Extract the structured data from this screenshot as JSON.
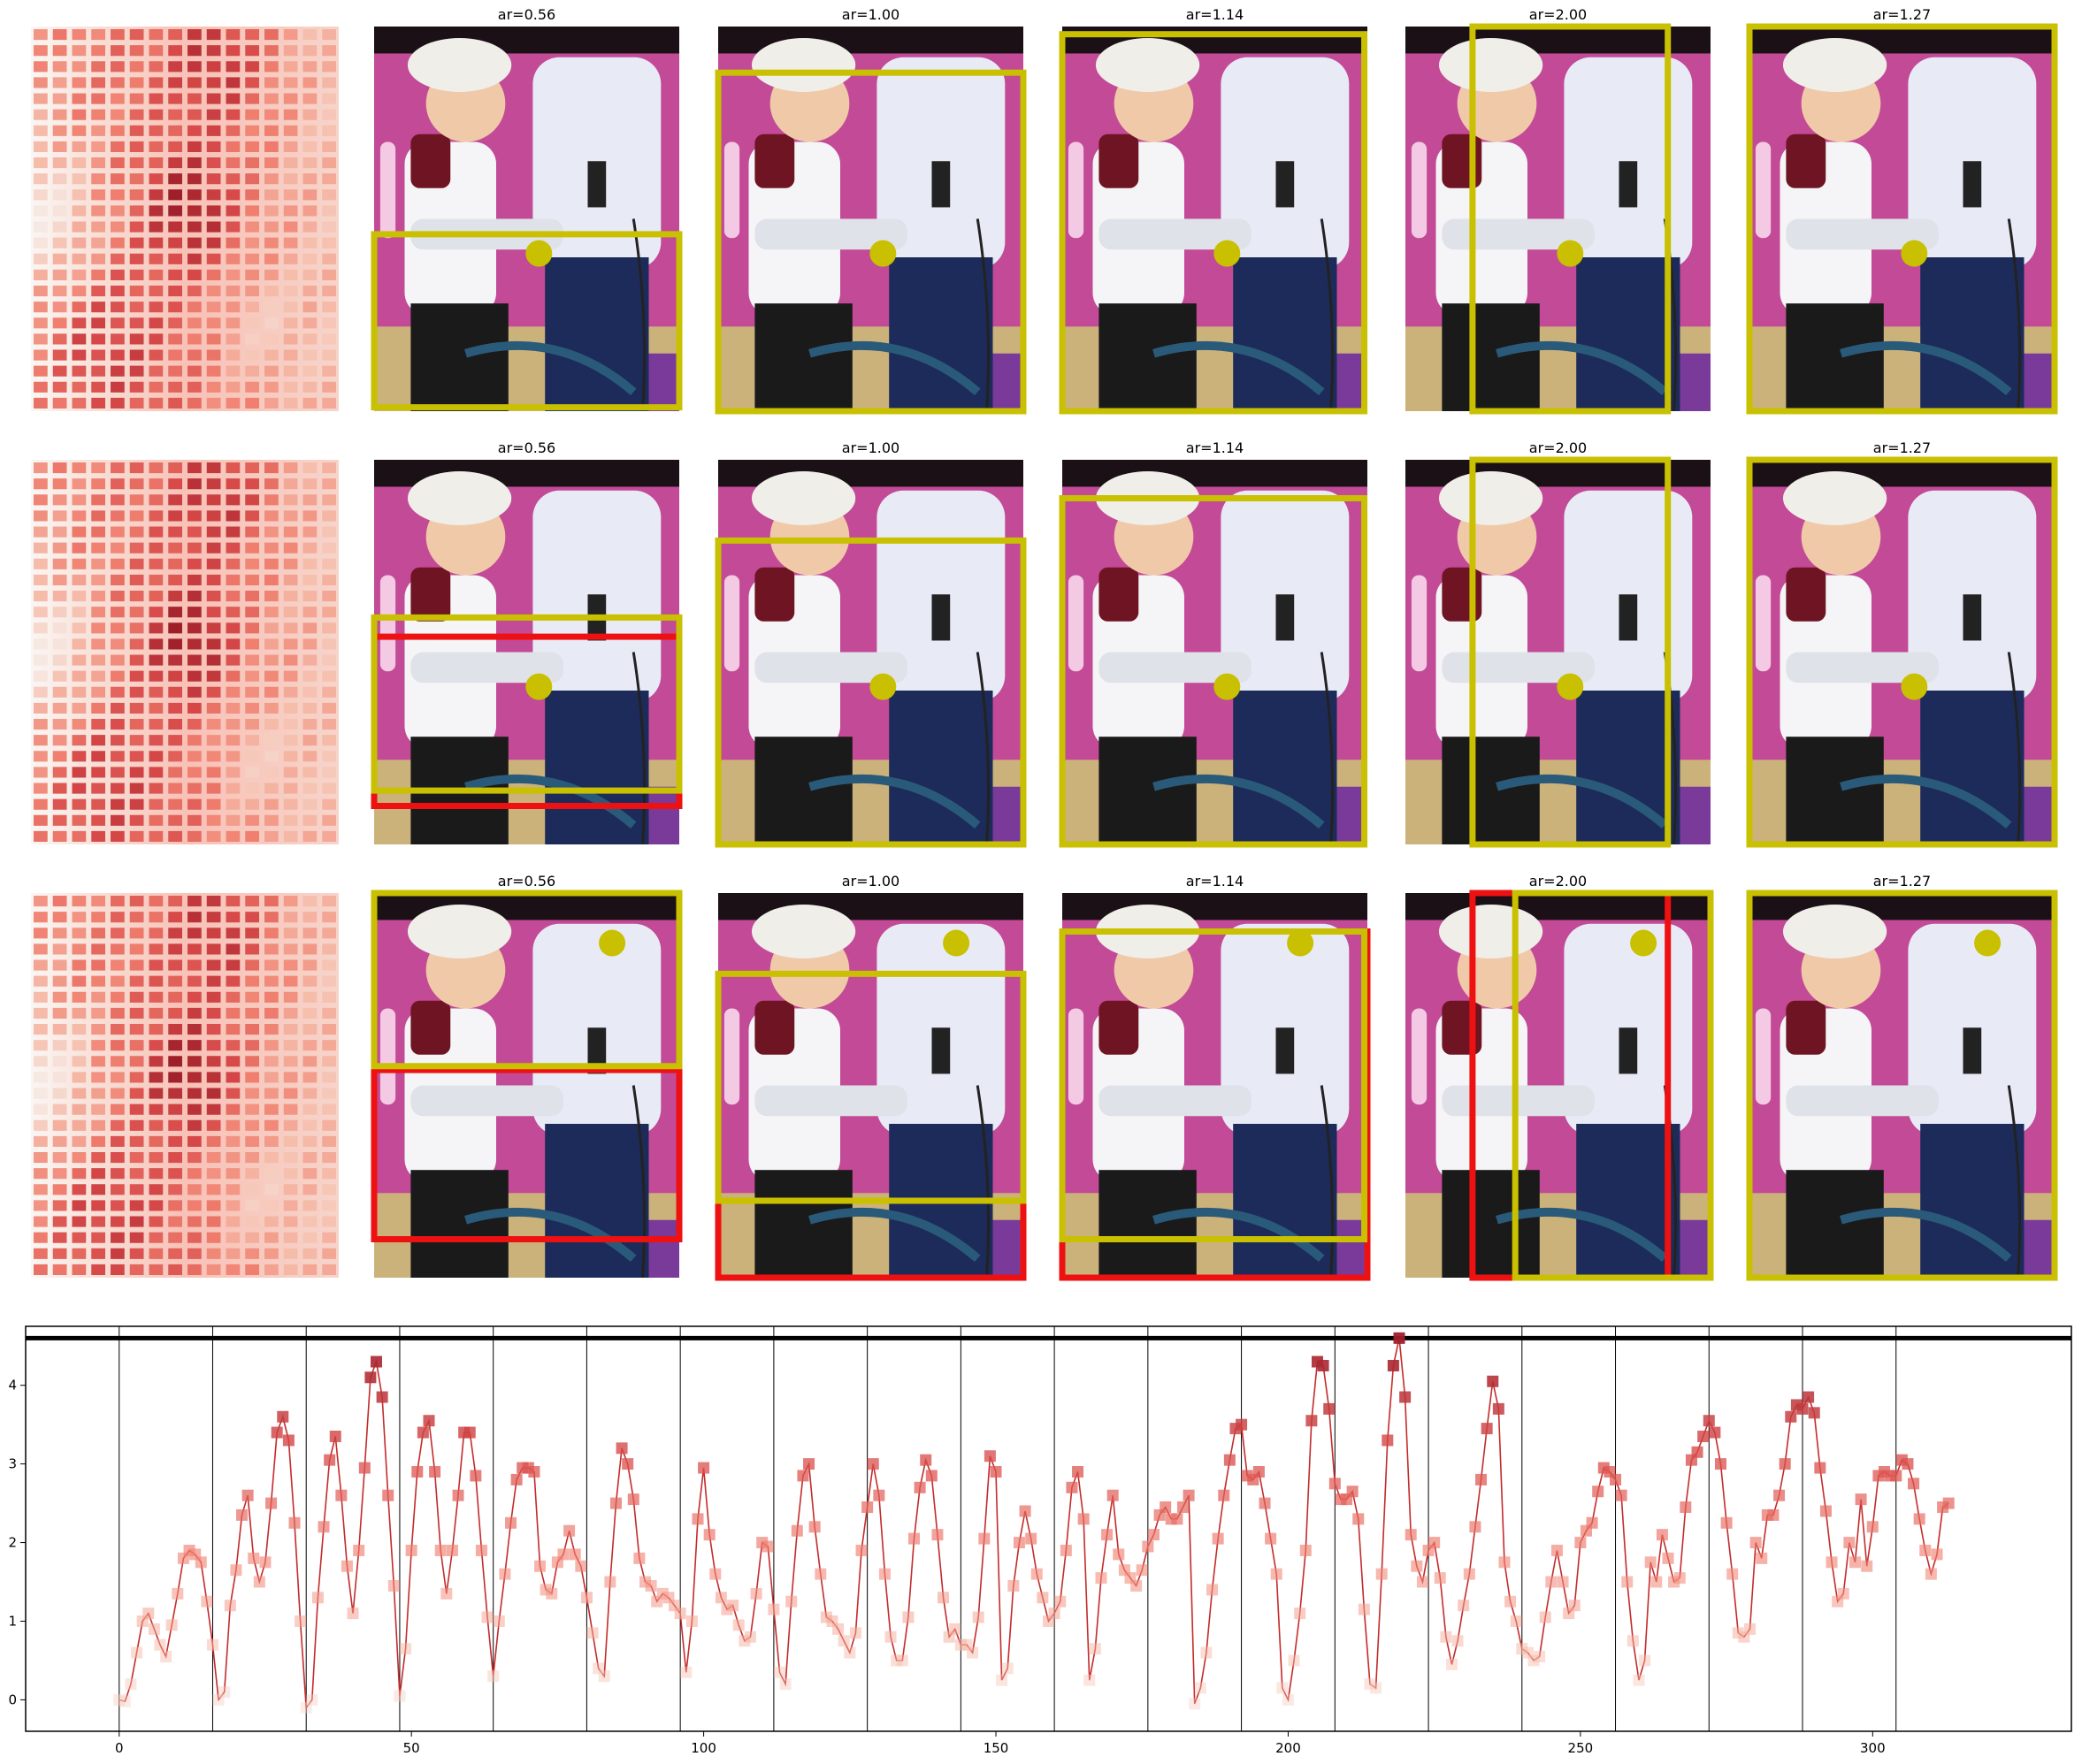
{
  "colors": {
    "heat_low": "#f6e8e2",
    "heat_mid": "#f08070",
    "heat_high": "#9e1f2a",
    "box_yellow": "#c8c000",
    "box_red": "#ee1111",
    "dot_yellow": "#c8c000",
    "magenta_bg": "#c24a96",
    "line_red": "#cc2222"
  },
  "rows": [
    {
      "panels": [
        {
          "title": "ar=0.56",
          "yellow": [
            [
              0.0,
              0.54,
              1.0,
              0.99
            ]
          ],
          "red": [],
          "dot": [
            0.54,
            0.59
          ]
        },
        {
          "title": "ar=1.00",
          "yellow": [
            [
              0.0,
              0.12,
              1.0,
              1.0
            ]
          ],
          "red": [],
          "dot": [
            0.54,
            0.59
          ]
        },
        {
          "title": "ar=1.14",
          "yellow": [
            [
              0.0,
              0.02,
              0.99,
              1.0
            ]
          ],
          "red": [],
          "dot": [
            0.54,
            0.59
          ]
        },
        {
          "title": "ar=2.00",
          "yellow": [
            [
              0.22,
              0.0,
              0.86,
              1.0
            ]
          ],
          "red": [],
          "dot": [
            0.54,
            0.59
          ]
        },
        {
          "title": "ar=1.27",
          "yellow": [
            [
              0.0,
              0.0,
              1.0,
              1.0
            ]
          ],
          "red": [],
          "dot": [
            0.54,
            0.59
          ]
        }
      ]
    },
    {
      "panels": [
        {
          "title": "ar=0.56",
          "yellow": [
            [
              0.0,
              0.41,
              1.0,
              0.86
            ]
          ],
          "red": [
            [
              0.0,
              0.46,
              1.0,
              0.9
            ]
          ],
          "dot": [
            0.54,
            0.59
          ]
        },
        {
          "title": "ar=1.00",
          "yellow": [
            [
              0.0,
              0.21,
              1.0,
              1.0
            ]
          ],
          "red": [],
          "dot": [
            0.54,
            0.59
          ]
        },
        {
          "title": "ar=1.14",
          "yellow": [
            [
              0.0,
              0.1,
              0.99,
              1.0
            ]
          ],
          "red": [],
          "dot": [
            0.54,
            0.59
          ]
        },
        {
          "title": "ar=2.00",
          "yellow": [
            [
              0.22,
              0.0,
              0.86,
              1.0
            ]
          ],
          "red": [],
          "dot": [
            0.54,
            0.59
          ]
        },
        {
          "title": "ar=1.27",
          "yellow": [
            [
              0.0,
              0.0,
              1.0,
              1.0
            ]
          ],
          "red": [],
          "dot": [
            0.54,
            0.59
          ]
        }
      ]
    },
    {
      "panels": [
        {
          "title": "ar=0.56",
          "yellow": [
            [
              0.0,
              0.0,
              1.0,
              0.45
            ]
          ],
          "red": [
            [
              0.0,
              0.46,
              1.0,
              0.9
            ]
          ],
          "dot": [
            0.78,
            0.13
          ]
        },
        {
          "title": "ar=1.00",
          "yellow": [
            [
              0.0,
              0.21,
              1.0,
              0.8
            ]
          ],
          "red": [
            [
              0.0,
              0.8,
              1.0,
              1.0
            ]
          ],
          "dot": [
            0.78,
            0.13
          ]
        },
        {
          "title": "ar=1.14",
          "yellow": [
            [
              0.0,
              0.1,
              0.99,
              0.9
            ]
          ],
          "red": [
            [
              0.0,
              0.1,
              1.0,
              1.0
            ]
          ],
          "dot": [
            0.78,
            0.13
          ]
        },
        {
          "title": "ar=2.00",
          "yellow": [
            [
              0.36,
              0.0,
              1.0,
              1.0
            ]
          ],
          "red": [
            [
              0.22,
              0.0,
              0.86,
              1.0
            ]
          ],
          "dot": [
            0.78,
            0.13
          ]
        },
        {
          "title": "ar=1.27",
          "yellow": [
            [
              0.0,
              0.0,
              1.0,
              1.0
            ]
          ],
          "red": [],
          "dot": [
            0.78,
            0.13
          ]
        }
      ]
    }
  ],
  "chart_data": {
    "type": "line",
    "xlim": [
      -16,
      334
    ],
    "ylim": [
      -0.4,
      4.75
    ],
    "x_ticks": [
      0,
      50,
      100,
      150,
      200,
      250,
      300
    ],
    "y_ticks": [
      0,
      1,
      2,
      3,
      4
    ],
    "x_tick_labels": [
      "0",
      "50",
      "100",
      "150",
      "200",
      "250",
      "300"
    ],
    "y_tick_labels": [
      "0",
      "1",
      "2",
      "3",
      "4"
    ],
    "vlines": [
      0,
      16,
      32,
      48,
      64,
      80,
      96,
      112,
      128,
      144,
      160,
      176,
      192,
      208,
      224,
      240,
      256,
      272,
      288,
      304
    ],
    "hline": 4.6,
    "grid": false,
    "series": [
      {
        "values": [
          0.0,
          -0.02,
          0.2,
          0.6,
          1.0,
          1.1,
          0.9,
          0.7,
          0.55,
          0.95,
          1.35,
          1.8,
          1.9,
          1.85,
          1.75,
          1.25,
          0.7,
          0.0,
          0.1,
          1.2,
          1.65,
          2.35,
          2.6,
          1.8,
          1.5,
          1.75,
          2.5,
          3.4,
          3.6,
          3.3,
          2.25,
          1.0,
          -0.1,
          0.0,
          1.3,
          2.2,
          3.05,
          3.35,
          2.6,
          1.7,
          1.1,
          1.9,
          2.95,
          4.1,
          4.3,
          3.85,
          2.6,
          1.45,
          0.05,
          0.65,
          1.9,
          2.9,
          3.4,
          3.55,
          2.9,
          1.9,
          1.35,
          1.9,
          2.6,
          3.4,
          3.4,
          2.85,
          1.9,
          1.05,
          0.3,
          1.0,
          1.6,
          2.25,
          2.8,
          2.95,
          2.95,
          2.9,
          1.7,
          1.4,
          1.35,
          1.75,
          1.85,
          2.15,
          1.85,
          1.7,
          1.3,
          0.85,
          0.4,
          0.3,
          1.5,
          2.5,
          3.2,
          3.0,
          2.55,
          1.8,
          1.5,
          1.45,
          1.25,
          1.35,
          1.3,
          1.2,
          1.1,
          0.35,
          1.0,
          2.3,
          2.95,
          2.1,
          1.6,
          1.3,
          1.15,
          1.2,
          0.95,
          0.75,
          0.8,
          1.35,
          2.0,
          1.95,
          1.15,
          0.35,
          0.2,
          1.25,
          2.15,
          2.85,
          3.0,
          2.2,
          1.6,
          1.05,
          1.0,
          0.9,
          0.75,
          0.6,
          0.85,
          1.9,
          2.45,
          3.0,
          2.6,
          1.6,
          0.8,
          0.5,
          0.5,
          1.05,
          2.05,
          2.7,
          3.05,
          2.85,
          2.1,
          1.3,
          0.8,
          0.9,
          0.7,
          0.7,
          0.6,
          1.05,
          2.05,
          3.1,
          2.9,
          0.25,
          0.4,
          1.45,
          2.0,
          2.4,
          2.05,
          1.6,
          1.3,
          1.0,
          1.1,
          1.25,
          1.9,
          2.7,
          2.9,
          2.3,
          0.25,
          0.65,
          1.55,
          2.1,
          2.6,
          1.85,
          1.65,
          1.55,
          1.45,
          1.65,
          1.95,
          2.1,
          2.35,
          2.45,
          2.3,
          2.3,
          2.45,
          2.6,
          -0.05,
          0.15,
          0.6,
          1.4,
          2.05,
          2.6,
          3.05,
          3.45,
          3.5,
          2.85,
          2.8,
          2.9,
          2.5,
          2.05,
          1.6,
          0.15,
          0.0,
          0.5,
          1.1,
          1.9,
          3.55,
          4.3,
          4.25,
          3.7,
          2.75,
          2.55,
          2.55,
          2.65,
          2.3,
          1.15,
          0.2,
          0.15,
          1.6,
          3.3,
          4.25,
          4.6,
          3.85,
          2.1,
          1.7,
          1.5,
          1.9,
          2.0,
          1.55,
          0.8,
          0.45,
          0.75,
          1.2,
          1.6,
          2.2,
          2.8,
          3.45,
          4.05,
          3.7,
          1.75,
          1.25,
          1.0,
          0.65,
          0.6,
          0.5,
          0.55,
          1.05,
          1.5,
          1.9,
          1.5,
          1.1,
          1.2,
          2.0,
          2.15,
          2.25,
          2.65,
          2.95,
          2.9,
          2.8,
          2.6,
          1.5,
          0.75,
          0.25,
          0.5,
          1.75,
          1.5,
          2.1,
          1.8,
          1.5,
          1.55,
          2.45,
          3.05,
          3.15,
          3.35,
          3.55,
          3.4,
          3.0,
          2.25,
          1.6,
          0.85,
          0.8,
          0.9,
          2.0,
          1.8,
          2.35,
          2.35,
          2.6,
          3.0,
          3.6,
          3.75,
          3.7,
          3.85,
          3.65,
          2.95,
          2.4,
          1.75,
          1.25,
          1.35,
          2.0,
          1.75,
          2.55,
          1.7,
          2.2,
          2.85,
          2.9,
          2.85,
          2.85,
          3.05,
          3.0,
          2.75,
          2.3,
          1.9,
          1.6,
          1.85,
          2.45,
          2.5
        ]
      }
    ]
  }
}
